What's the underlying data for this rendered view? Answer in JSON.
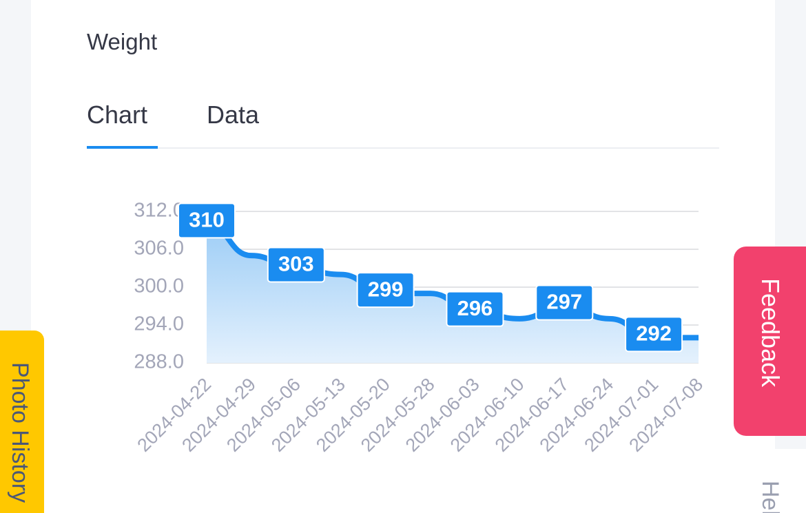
{
  "header": {
    "title": "Weight"
  },
  "tabs": [
    "Chart",
    "Data"
  ],
  "chart_data": {
    "type": "line",
    "categories": [
      "2024-04-22",
      "2024-04-29",
      "2024-05-06",
      "2024-05-13",
      "2024-05-20",
      "2024-05-28",
      "2024-06-03",
      "2024-06-10",
      "2024-06-17",
      "2024-06-24",
      "2024-07-01",
      "2024-07-08"
    ],
    "values": [
      310,
      305,
      303,
      302,
      299,
      299,
      296,
      295,
      297,
      295,
      292,
      292
    ],
    "color": "#1a8cf0",
    "ylim": [
      288,
      312
    ],
    "yticks": [
      {
        "value": 312,
        "label": "312.0"
      },
      {
        "value": 306,
        "label": "306.0"
      },
      {
        "value": 300,
        "label": "300.0"
      },
      {
        "value": 294,
        "label": "294.0"
      },
      {
        "value": 288,
        "label": "288.0"
      }
    ],
    "grid": true
  },
  "buttons": {
    "feedback": "Feedback",
    "photo_history": "Photo History",
    "help": "Help"
  }
}
